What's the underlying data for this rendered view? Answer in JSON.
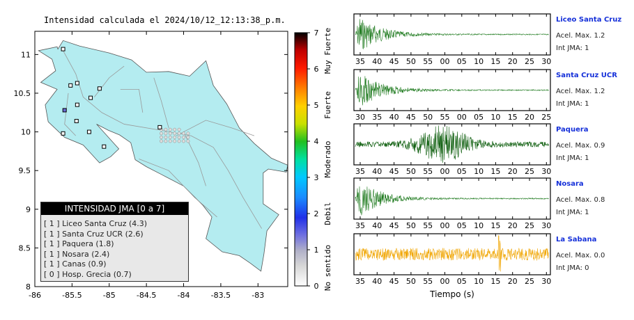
{
  "title": "Intensidad calculada el 2024/10/12_12:13:38_p.m.",
  "map": {
    "x_ticks": [
      "-86",
      "-85.5",
      "-85",
      "-84.5",
      "-84",
      "-83.5",
      "-83"
    ],
    "y_ticks": [
      "11",
      "10.5",
      "10",
      "9.5",
      "9",
      "8.5",
      "8"
    ],
    "land_color": "#b4ecf0",
    "sea_color": "#ffffff"
  },
  "legend": {
    "title": "INTENSIDAD JMA [0 a 7]",
    "items": [
      {
        "bracket": "[ 1 ]",
        "label": "Liceo Santa Cruz (4.3)"
      },
      {
        "bracket": "[ 1 ]",
        "label": "Santa Cruz UCR (2.6)"
      },
      {
        "bracket": "[ 1 ]",
        "label": "Paquera (1.8)"
      },
      {
        "bracket": "[ 1 ]",
        "label": "Nosara (2.4)"
      },
      {
        "bracket": "[ 1 ]",
        "label": "Canas (0.9)"
      },
      {
        "bracket": "[ 0 ]",
        "label": "Hosp. Grecia (0.7)"
      }
    ]
  },
  "colorbar": {
    "ticks": [
      "0",
      "1",
      "2",
      "3",
      "4",
      "5",
      "6",
      "7"
    ],
    "categories": [
      "No sentido",
      "Debil",
      "Moderado",
      "Fuerte",
      "Muy Fuerte"
    ]
  },
  "waveforms": {
    "xlabel": "Tiempo (s)",
    "stations": [
      {
        "name": "Liceo Santa Cruz",
        "acel": "Acel. Max. 1.2",
        "int": "Int JMA: 1",
        "ticks": [
          "35",
          "40",
          "45",
          "50",
          "55",
          "00",
          "05",
          "10",
          "15",
          "20",
          "25",
          "30"
        ],
        "color": "#1e7a1e",
        "type": "decay"
      },
      {
        "name": "Santa Cruz UCR",
        "acel": "Acel. Max. 1.2",
        "int": "Int JMA: 1",
        "ticks": [
          "30",
          "35",
          "40",
          "45",
          "50",
          "55",
          "00",
          "05",
          "10",
          "15",
          "20",
          "25"
        ],
        "color": "#1e7a1e",
        "type": "decay"
      },
      {
        "name": "Paquera",
        "acel": "Acel. Max. 0.9",
        "int": "Int JMA: 1",
        "ticks": [
          "35",
          "40",
          "45",
          "50",
          "55",
          "00",
          "05",
          "10",
          "15",
          "20",
          "25",
          "30"
        ],
        "color": "#0f5f0f",
        "type": "burst"
      },
      {
        "name": "Nosara",
        "acel": "Acel. Max. 0.8",
        "int": "Int JMA: 1",
        "ticks": [
          "35",
          "40",
          "45",
          "50",
          "55",
          "00",
          "05",
          "10",
          "15",
          "20",
          "25",
          "30"
        ],
        "color": "#1e7a1e",
        "type": "decay"
      },
      {
        "name": "La Sabana",
        "acel": "Acel. Max. 0.0",
        "int": "Int JMA: 0",
        "ticks": [
          "35",
          "40",
          "45",
          "50",
          "55",
          "00",
          "05",
          "10",
          "15",
          "20",
          "25",
          "30"
        ],
        "color": "#f0a500",
        "type": "noise"
      }
    ]
  },
  "chart_data": [
    {
      "type": "scatter",
      "title": "Intensidad calculada el 2024/10/12_12:13:38_p.m.",
      "xlabel": "",
      "ylabel": "",
      "xlim": [
        -86,
        -82.6
      ],
      "ylim": [
        8,
        11.3
      ],
      "points": [
        {
          "x": -85.62,
          "y": 11.07
        },
        {
          "x": -85.52,
          "y": 10.6
        },
        {
          "x": -85.43,
          "y": 10.63
        },
        {
          "x": -85.13,
          "y": 10.56
        },
        {
          "x": -85.6,
          "y": 10.28
        },
        {
          "x": -85.43,
          "y": 10.35
        },
        {
          "x": -85.44,
          "y": 10.14
        },
        {
          "x": -85.25,
          "y": 10.44
        },
        {
          "x": -85.62,
          "y": 9.98
        },
        {
          "x": -85.27,
          "y": 10.0
        },
        {
          "x": -85.07,
          "y": 9.81
        },
        {
          "x": -84.32,
          "y": 10.06
        }
      ]
    },
    {
      "type": "line",
      "title": "",
      "xlabel": "Tiempo (s)",
      "ylabel": "",
      "series": [
        {
          "name": "Liceo Santa Cruz"
        },
        {
          "name": "Santa Cruz UCR"
        },
        {
          "name": "Paquera"
        },
        {
          "name": "Nosara"
        },
        {
          "name": "La Sabana"
        }
      ]
    }
  ]
}
